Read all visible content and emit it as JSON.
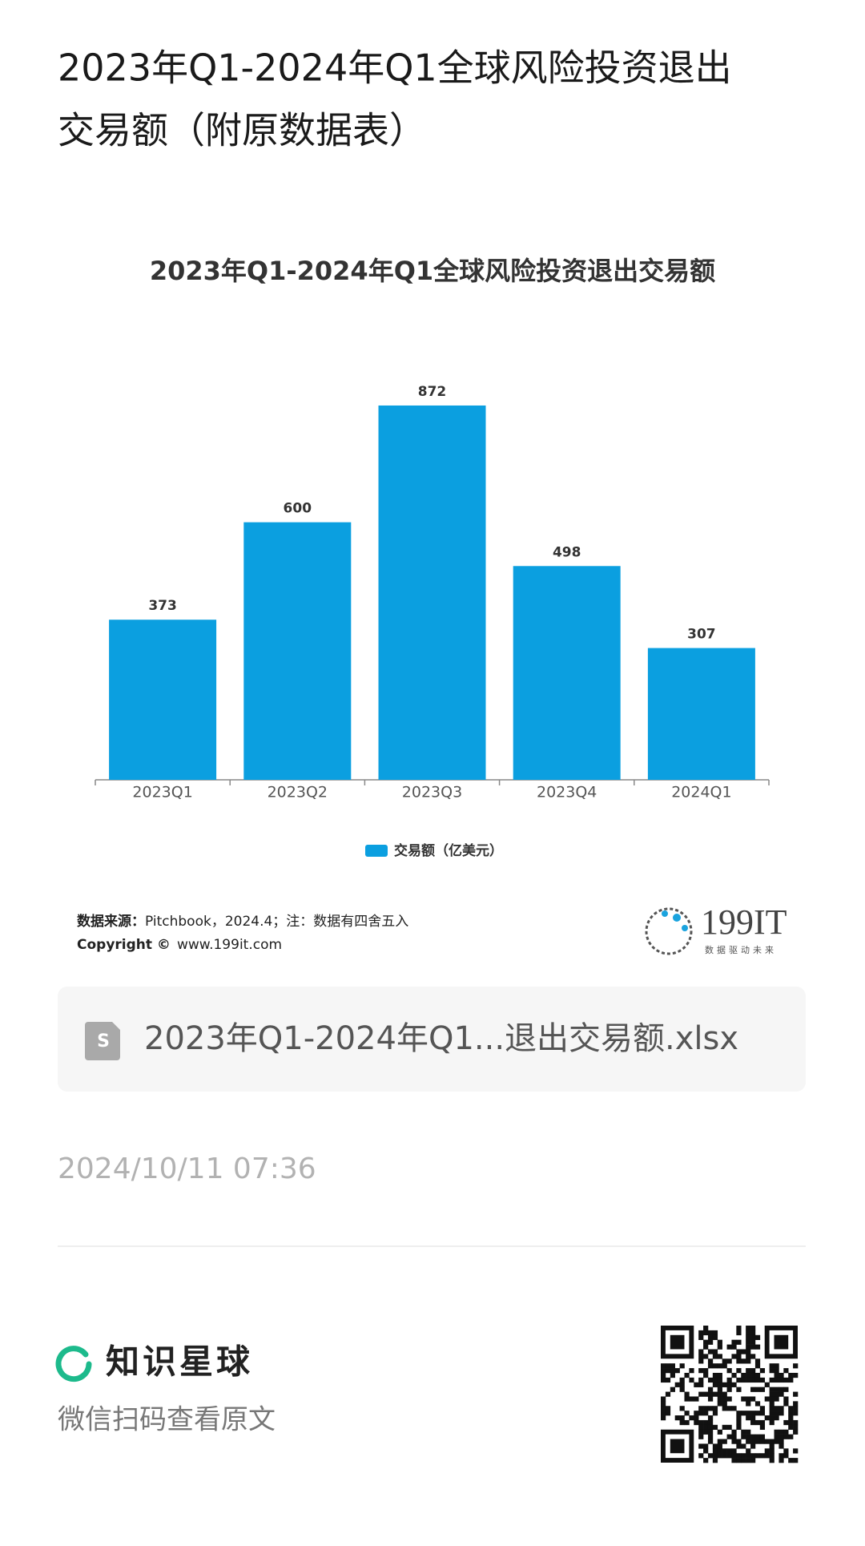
{
  "header": {
    "title_line1": "2023年Q1-2024年Q1全球风险投资退出",
    "title_line2": "交易额（附原数据表）"
  },
  "chart_data": {
    "type": "bar",
    "title": "2023年Q1-2024年Q1全球风险投资退出交易额",
    "categories": [
      "2023Q1",
      "2023Q2",
      "2023Q3",
      "2023Q4",
      "2024Q1"
    ],
    "series": [
      {
        "name": "交易额（亿美元）",
        "color": "#0b9fe0",
        "values": [
          373,
          600,
          872,
          498,
          307
        ]
      }
    ]
  },
  "source": {
    "label": "数据来源：",
    "text": "Pitchbook，2024.4；注：数据有四舍五入",
    "copyright_label": "Copyright ©",
    "copyright_text": "www.199it.com"
  },
  "logo": {
    "brand": "199IT",
    "slogan": "数据驱动未来"
  },
  "file": {
    "name": "2023年Q1-2024年Q1...退出交易额.xlsx"
  },
  "date": "2024/10/11 07:36",
  "footer": {
    "brand": "知识星球",
    "hint": "微信扫码查看原文"
  }
}
